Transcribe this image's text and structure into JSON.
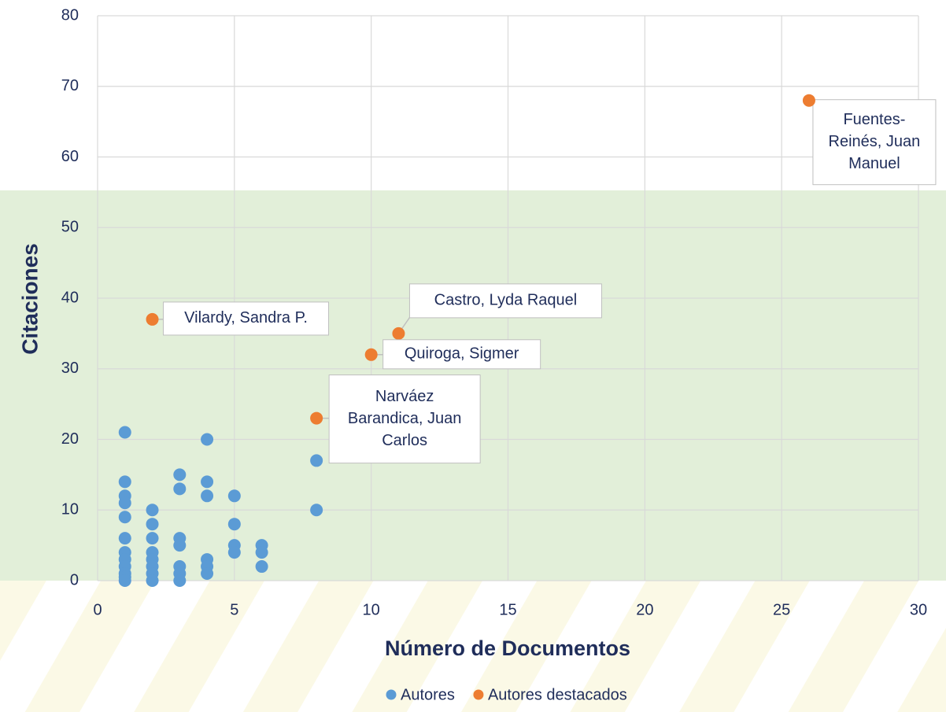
{
  "chart_data": {
    "type": "scatter",
    "xlabel": "Número de Documentos",
    "ylabel": "Citaciones",
    "xlim": [
      0,
      30
    ],
    "xticks": [
      0,
      5,
      10,
      15,
      20,
      25,
      30
    ],
    "ylim": [
      0,
      80
    ],
    "yticks": [
      0,
      10,
      20,
      30,
      40,
      50,
      60,
      70,
      80
    ],
    "grid": true,
    "legend": "bottom",
    "series": [
      {
        "name": "Autores",
        "color": "#5b9bd5",
        "x": [
          1,
          1,
          1,
          1,
          1,
          1,
          1,
          1,
          1,
          1,
          1,
          1,
          2,
          2,
          2,
          2,
          2,
          2,
          2,
          2,
          3,
          3,
          3,
          3,
          3,
          3,
          3,
          4,
          4,
          4,
          4,
          4,
          4,
          5,
          5,
          5,
          5,
          6,
          6,
          6,
          8,
          8
        ],
        "values": [
          21,
          14,
          12,
          11,
          9,
          6,
          4,
          3,
          2,
          1,
          0.5,
          0,
          10,
          8,
          6,
          4,
          3,
          2,
          1,
          0,
          15,
          13,
          6,
          5,
          2,
          1,
          0,
          20,
          14,
          12,
          3,
          2,
          1,
          12,
          8,
          5,
          4,
          5,
          4,
          2,
          17,
          10
        ]
      },
      {
        "name": "Autores destacados",
        "color": "#ed7d31",
        "x": [
          2,
          11,
          10,
          8,
          26
        ],
        "values": [
          37,
          35,
          32,
          23,
          68
        ],
        "point_labels": [
          [
            "Vilardy, Sandra P."
          ],
          [
            "Castro, Lyda Raquel"
          ],
          [
            "Quiroga, Sigmer"
          ],
          [
            "Narváez",
            "Barandica, Juan",
            "Carlos"
          ],
          [
            "Fuentes-",
            "Reinés, Juan",
            "Manuel"
          ]
        ]
      }
    ]
  }
}
